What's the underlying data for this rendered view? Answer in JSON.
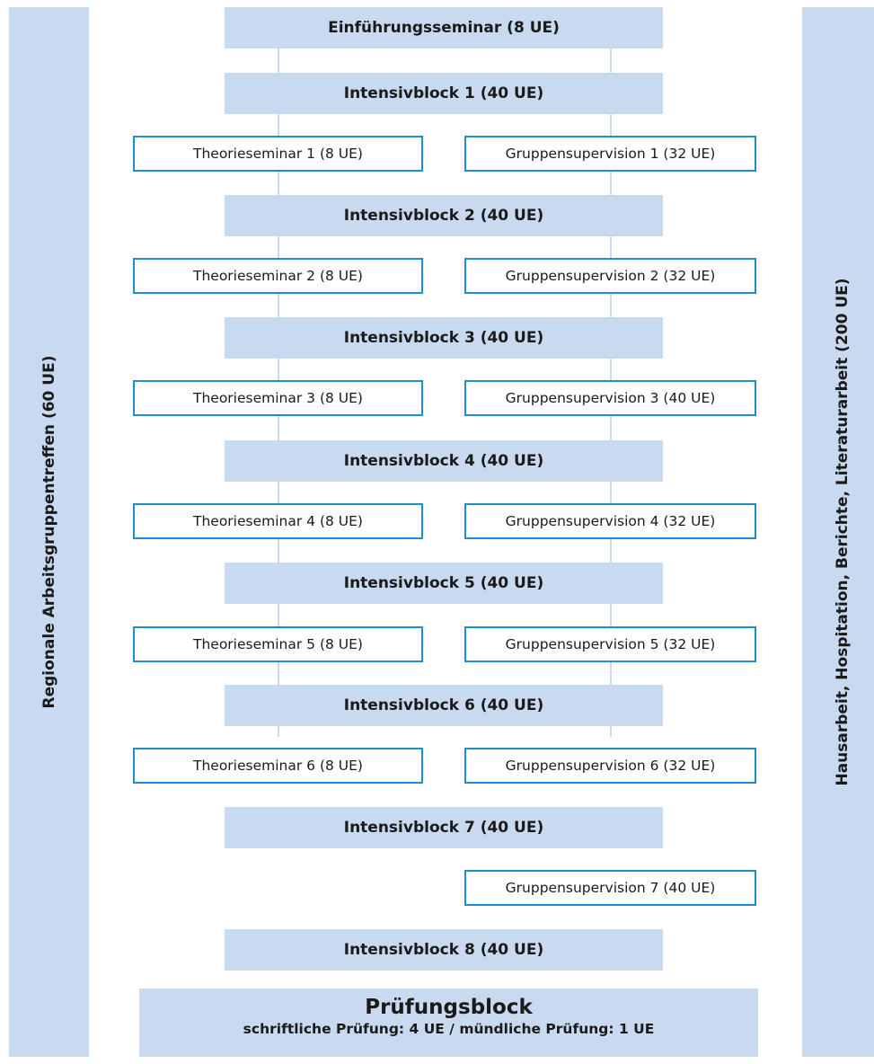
{
  "left_sidebar": {
    "label": "Regionale Arbeitsgruppentreffen (60 UE)"
  },
  "right_sidebar": {
    "label": "Hausarbeit, Hospitation, Berichte, Literaturarbeit (200 UE)"
  },
  "intro": {
    "label": "Einführungsseminar (8 UE)"
  },
  "blocks": [
    {
      "label": "Intensivblock 1 (40 UE)"
    },
    {
      "label": "Intensivblock 2 (40 UE)"
    },
    {
      "label": "Intensivblock 3 (40 UE)"
    },
    {
      "label": "Intensivblock 4 (40 UE)"
    },
    {
      "label": "Intensivblock 5 (40 UE)"
    },
    {
      "label": "Intensivblock 6 (40 UE)"
    },
    {
      "label": "Intensivblock 7 (40 UE)"
    },
    {
      "label": "Intensivblock 8 (40 UE)"
    }
  ],
  "theory": [
    {
      "label": "Theorieseminar 1 (8 UE)"
    },
    {
      "label": "Theorieseminar 2 (8 UE)"
    },
    {
      "label": "Theorieseminar 3 (8 UE)"
    },
    {
      "label": "Theorieseminar 4 (8 UE)"
    },
    {
      "label": "Theorieseminar 5 (8 UE)"
    },
    {
      "label": "Theorieseminar 6 (8 UE)"
    }
  ],
  "supervision": [
    {
      "label": "Gruppensupervision 1 (32 UE)"
    },
    {
      "label": "Gruppensupervision 2 (32 UE)"
    },
    {
      "label": "Gruppensupervision 3 (40 UE)"
    },
    {
      "label": "Gruppensupervision 4 (32 UE)"
    },
    {
      "label": "Gruppensupervision 5 (32 UE)"
    },
    {
      "label": "Gruppensupervision 6 (32 UE)"
    },
    {
      "label": "Gruppensupervision 7 (40 UE)"
    }
  ],
  "exam": {
    "title": "Prüfungsblock",
    "detail": "schriftliche Prüfung: 4 UE / mündliche Prüfung: 1 UE"
  },
  "colors": {
    "fill": "#c9daf0",
    "border": "#1b8fcf"
  }
}
